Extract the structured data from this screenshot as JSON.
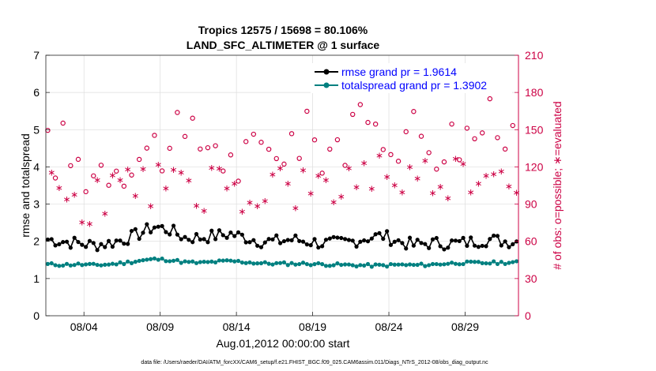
{
  "figure": {
    "title_line1": "Tropics 12575 / 15698 = 80.106%",
    "title_line2": "LAND_SFC_ALTIMETER @ 1 surface",
    "footer": "data file: /Users/raeder/DAI/ATM_forcXX/CAM6_setup/f.e21.FHIST_BGC.f09_025.CAM6assim.011/Diags_NTrS_2012-08/obs_diag_output.nc"
  },
  "chart_data": {
    "type": "line",
    "xlabel": "Aug.01,2012 00:00:00 start",
    "ylabel": "rmse and totalspread",
    "y2label": "# of obs: o=possible; ∗=evaluated",
    "xlim": [
      0.5,
      31.5
    ],
    "ylim": [
      0,
      7
    ],
    "y2lim": [
      0,
      210
    ],
    "x_ticks": [
      3,
      8,
      13,
      18,
      23,
      28
    ],
    "x_tick_labels": [
      "08/04",
      "08/09",
      "08/14",
      "08/19",
      "08/24",
      "08/29"
    ],
    "y_ticks": [
      0,
      1,
      2,
      3,
      4,
      5,
      6,
      7
    ],
    "y_tick_labels": [
      "0",
      "1",
      "2",
      "3",
      "4",
      "5",
      "6",
      "7"
    ],
    "y2_ticks": [
      0,
      30,
      60,
      90,
      120,
      150,
      180,
      210
    ],
    "y2_tick_labels": [
      "0",
      "30",
      "60",
      "90",
      "120",
      "150",
      "180",
      "210"
    ],
    "grid": true,
    "legend_position": "top-right",
    "legend": [
      {
        "label": "rmse grand pr = 1.9614",
        "color": "#000000"
      },
      {
        "label": "totalspread grand pr = 1.3902",
        "color": "#008080"
      }
    ],
    "colors": {
      "rmse": "#000000",
      "spread": "#008080",
      "obs": "#cc0044",
      "legend_text": "#0000ff"
    },
    "rmse_base": [
      2.05,
      2.0,
      1.95,
      1.9,
      1.95,
      2.05,
      2.2,
      2.4,
      2.3,
      2.1,
      2.1,
      2.15,
      2.2,
      2.1,
      2.0,
      2.0,
      2.05,
      2.0,
      1.95,
      1.95,
      2.0,
      2.1,
      2.15,
      2.0,
      1.9,
      1.95,
      1.95,
      1.95,
      2.0,
      2.05,
      2.0
    ],
    "spread_base": [
      1.38,
      1.37,
      1.38,
      1.36,
      1.38,
      1.42,
      1.48,
      1.52,
      1.5,
      1.44,
      1.42,
      1.45,
      1.47,
      1.44,
      1.41,
      1.4,
      1.4,
      1.4,
      1.38,
      1.37,
      1.36,
      1.35,
      1.35,
      1.37,
      1.36,
      1.37,
      1.4,
      1.42,
      1.42,
      1.42,
      1.43
    ],
    "possible_base": [
      130,
      135,
      120,
      118,
      125,
      128,
      130,
      135,
      140,
      138,
      140,
      142,
      120,
      125,
      130,
      138,
      140,
      142,
      138,
      140,
      145,
      148,
      150,
      148,
      150,
      145,
      140,
      145,
      150,
      152,
      145
    ],
    "evaluated_base": [
      100,
      95,
      90,
      95,
      100,
      98,
      105,
      108,
      112,
      110,
      100,
      105,
      100,
      98,
      100,
      105,
      100,
      98,
      95,
      100,
      110,
      115,
      115,
      110,
      105,
      110,
      112,
      110,
      115,
      120,
      110
    ]
  }
}
